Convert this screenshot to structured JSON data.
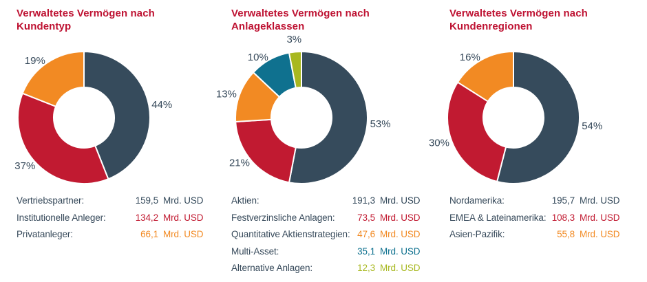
{
  "page": {
    "background": "#FFFFFF"
  },
  "colors": {
    "title": "#BE1232",
    "text": "#36495A",
    "slate": "#364B5C",
    "red": "#C11A31",
    "orange": "#F28A23",
    "blue": "#0F718F",
    "green": "#A8B820",
    "separator": "#FFFFFF"
  },
  "unit": "Mrd. USD",
  "chart_data": [
    {
      "type": "pie",
      "subtype": "donut",
      "title": "Verwaltetes Vermögen nach Kundentyp",
      "legend_position": "bottom",
      "segments": [
        {
          "label": "Vertriebspartner:",
          "pct": 44,
          "value": "159,5",
          "color": "#364B5C"
        },
        {
          "label": "Institutionelle Anleger:",
          "pct": 37,
          "value": "134,2",
          "color": "#C11A31"
        },
        {
          "label": "Privatanleger:",
          "pct": 19,
          "value": "66,1",
          "color": "#F28A23"
        }
      ]
    },
    {
      "type": "pie",
      "subtype": "donut",
      "title": "Verwaltetes Vermögen nach Anlageklassen",
      "legend_position": "bottom",
      "segments": [
        {
          "label": "Aktien:",
          "pct": 53,
          "value": "191,3",
          "color": "#364B5C"
        },
        {
          "label": "Festverzinsliche Anlagen:",
          "pct": 21,
          "value": "73,5",
          "color": "#C11A31"
        },
        {
          "label": "Quantitative Aktienstrategien:",
          "pct": 13,
          "value": "47,6",
          "color": "#F28A23"
        },
        {
          "label": "Multi-Asset:",
          "pct": 10,
          "value": "35,1",
          "color": "#0F718F"
        },
        {
          "label": "Alternative Anlagen:",
          "pct": 3,
          "value": "12,3",
          "color": "#A8B820"
        }
      ]
    },
    {
      "type": "pie",
      "subtype": "donut",
      "title": "Verwaltetes Vermögen nach Kundenregionen",
      "legend_position": "bottom",
      "segments": [
        {
          "label": "Nordamerika:",
          "pct": 54,
          "value": "195,7",
          "color": "#364B5C"
        },
        {
          "label": "EMEA & Lateinamerika:",
          "pct": 30,
          "value": "108,3",
          "color": "#C11A31"
        },
        {
          "label": "Asien-Pazifik:",
          "pct": 16,
          "value": "55,8",
          "color": "#F28A23"
        }
      ]
    }
  ]
}
